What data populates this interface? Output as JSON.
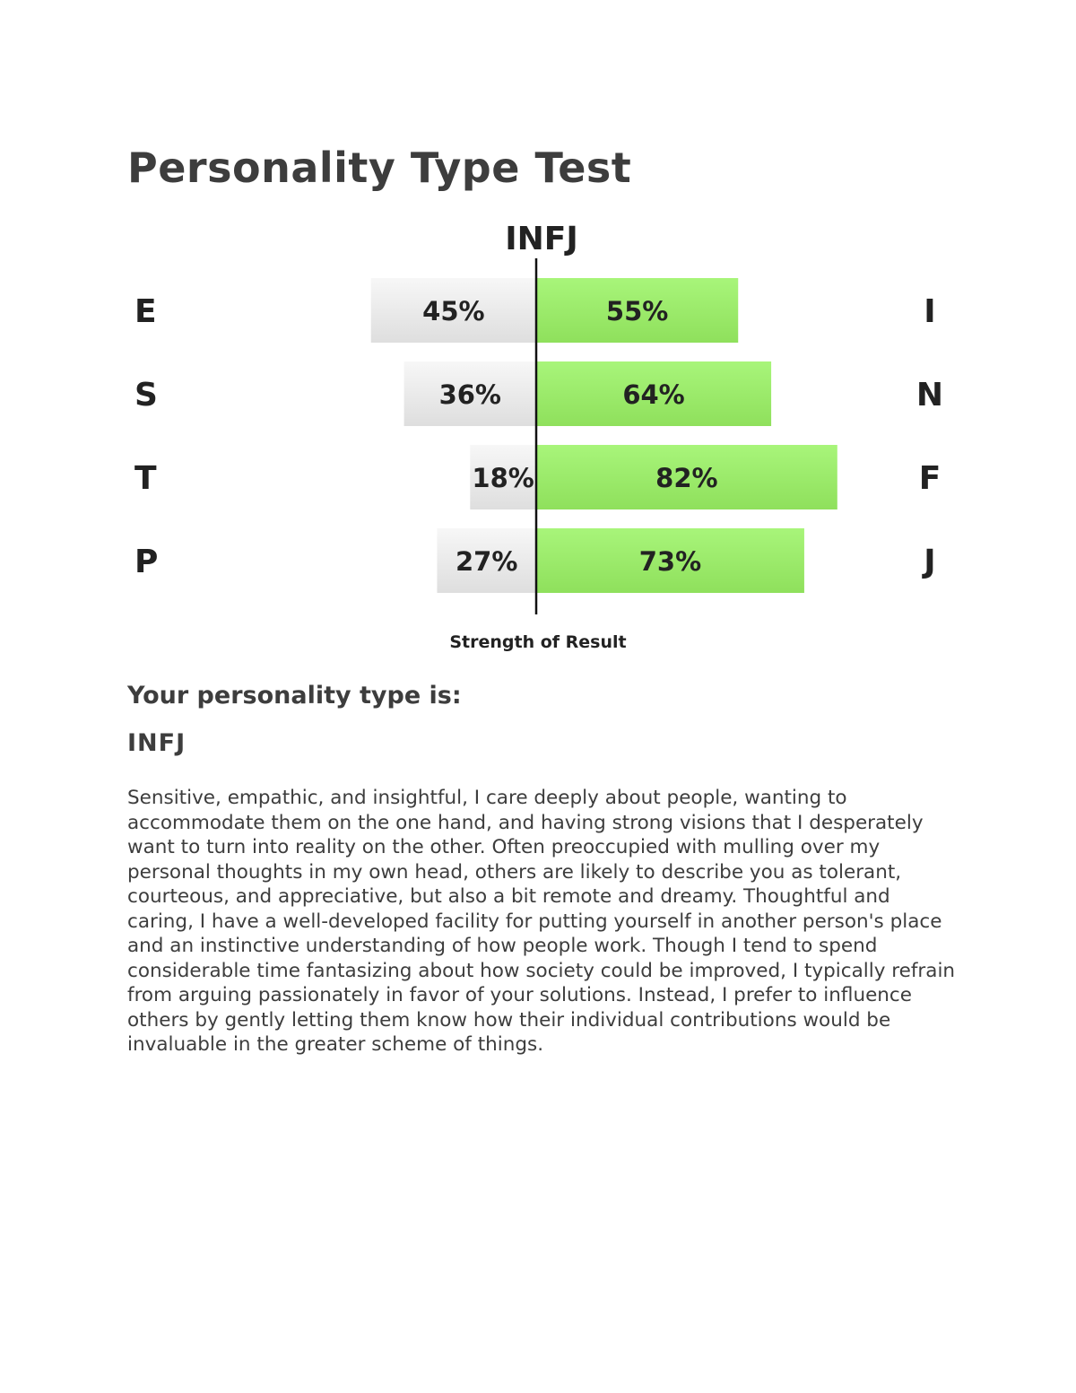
{
  "document": {
    "title": "Personality Type Test",
    "result_heading": "Your personality type is:",
    "result_type": "INFJ",
    "description": "Sensitive, empathic, and insightful, I care deeply about people, wanting to accommodate them on the one hand, and having strong visions that I desperately want to turn into reality on the other. Often preoccupied with mulling over my personal thoughts in my own head, others are likely to describe you as tolerant, courteous, and appreciative, but also a bit remote and dreamy. Thoughtful and caring, I have a well-developed facility for putting yourself in another person's place and an instinctive understanding of how people work. Though I tend to spend considerable time fantasizing about how society could be improved, I typically refrain from arguing passionately in favor of your solutions. Instead, I prefer to influence others by gently letting them know how their individual contributions would be invaluable in the greater scheme of things."
  },
  "colors": {
    "text": "#3d3d3d",
    "chart_text": "#222222",
    "bar_green_top": "#a8f57a",
    "bar_green_bottom": "#8fe05c",
    "bar_gray_top": "#f7f7f7",
    "bar_gray_bottom": "#dedede",
    "axis": "#111111"
  },
  "chart_data": {
    "type": "bar",
    "orientation": "horizontal-diverging",
    "title": "INFJ",
    "xlabel": "Strength of Result",
    "categories": [
      "E-I",
      "S-N",
      "T-F",
      "P-J"
    ],
    "left_labels": [
      "E",
      "S",
      "T",
      "P"
    ],
    "right_labels": [
      "I",
      "N",
      "F",
      "J"
    ],
    "series": [
      {
        "values": [
          45,
          36,
          18,
          27
        ],
        "labels": [
          "45%",
          "36%",
          "18%",
          "27%"
        ]
      },
      {
        "values": [
          55,
          64,
          82,
          73
        ],
        "labels": [
          "55%",
          "64%",
          "82%",
          "73%"
        ]
      }
    ],
    "unit": "%"
  }
}
